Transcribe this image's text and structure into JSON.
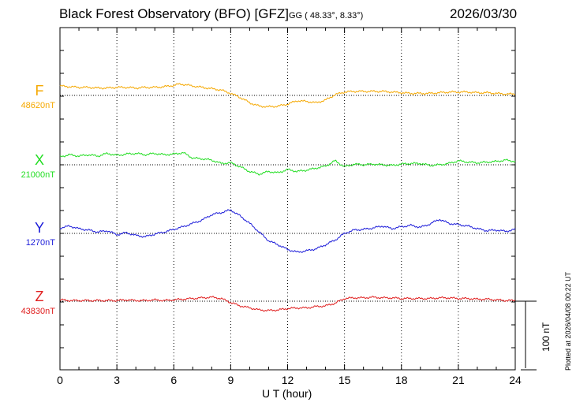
{
  "header": {
    "title": "Black Forest Observatory (BFO)  [GFZ]",
    "coords": "GG ( 48.33°,   8.33°)",
    "date": "2026/03/30"
  },
  "footer": {
    "plotted": "Plotted at 2026/04/08 00:22 UT"
  },
  "chart_data": {
    "type": "line",
    "title": "Black Forest Observatory (BFO)  [GFZ]",
    "xlabel": "U T (hour)",
    "ylabel": "",
    "xlim": [
      0,
      24
    ],
    "xticks": [
      "0",
      "3",
      "6",
      "9",
      "12",
      "15",
      "18",
      "21",
      "24"
    ],
    "grid": true,
    "scale_bar": {
      "label": "100 nT",
      "value_nT": 100
    },
    "series": [
      {
        "name": "F",
        "baseline_label": "48620nT",
        "color": "#f5a800",
        "x": [
          0,
          0.5,
          1,
          1.5,
          2,
          2.5,
          3,
          3.5,
          4,
          4.5,
          5,
          5.5,
          6,
          6.3,
          6.6,
          7,
          7.5,
          8,
          8.5,
          9,
          9.5,
          10,
          10.5,
          11,
          11.5,
          12,
          12.5,
          13,
          13.5,
          14,
          14.5,
          15,
          15.5,
          16,
          16.5,
          17,
          17.5,
          18,
          18.5,
          19,
          19.5,
          20,
          20.5,
          21,
          21.5,
          22,
          22.5,
          23,
          23.5,
          24
        ],
        "values": [
          14,
          13,
          12,
          12,
          11,
          11,
          12,
          12,
          11,
          12,
          12,
          13,
          15,
          17,
          16,
          14,
          12,
          10,
          8,
          3,
          -3,
          -11,
          -16,
          -17,
          -16,
          -13,
          -8,
          -9,
          -11,
          -7,
          1,
          5,
          6,
          6,
          6,
          6,
          5,
          4,
          3,
          3,
          3,
          4,
          5,
          5,
          5,
          4,
          4,
          3,
          2,
          2
        ]
      },
      {
        "name": "X",
        "baseline_label": "21000nT",
        "color": "#22dd22",
        "x": [
          0,
          0.5,
          1,
          1.5,
          2,
          2.5,
          3,
          3.5,
          4,
          4.5,
          5,
          5.5,
          6,
          6.5,
          7,
          7.5,
          8,
          8.5,
          9,
          9.5,
          10,
          10.5,
          11,
          11.5,
          12,
          12.5,
          13,
          13.5,
          14,
          14.5,
          15,
          15.5,
          16,
          16.5,
          17,
          17.5,
          18,
          18.5,
          19,
          19.5,
          20,
          20.5,
          21,
          21.5,
          22,
          22.5,
          23,
          23.5,
          24
        ],
        "values": [
          12,
          15,
          13,
          15,
          13,
          17,
          14,
          16,
          17,
          15,
          17,
          15,
          16,
          18,
          10,
          9,
          7,
          2,
          3,
          -3,
          -10,
          -14,
          -10,
          -12,
          -7,
          -10,
          -8,
          -5,
          -2,
          6,
          -3,
          1,
          0,
          1,
          0,
          -1,
          1,
          2,
          2,
          -1,
          0,
          2,
          6,
          4,
          3,
          4,
          5,
          7,
          5
        ]
      },
      {
        "name": "Y",
        "baseline_label": "1270nT",
        "color": "#1c1cd9",
        "x": [
          0,
          0.5,
          1,
          1.5,
          2,
          2.5,
          3,
          3.5,
          4,
          4.5,
          5,
          5.5,
          6,
          6.5,
          7,
          7.5,
          8,
          8.5,
          9,
          9.5,
          10,
          10.5,
          11,
          11.5,
          12,
          12.5,
          13,
          13.5,
          14,
          14.5,
          15,
          15.5,
          16,
          16.5,
          17,
          17.5,
          18,
          18.5,
          19,
          19.5,
          20,
          20.5,
          21,
          21.5,
          22,
          22.5,
          23,
          23.5,
          24
        ],
        "values": [
          8,
          11,
          7,
          5,
          2,
          4,
          -2,
          1,
          -3,
          -5,
          -1,
          2,
          6,
          10,
          15,
          20,
          28,
          31,
          35,
          26,
          15,
          2,
          -11,
          -17,
          -24,
          -28,
          -26,
          -23,
          -17,
          -10,
          0,
          5,
          6,
          8,
          11,
          7,
          10,
          12,
          9,
          14,
          21,
          15,
          13,
          11,
          7,
          4,
          5,
          3,
          6
        ]
      },
      {
        "name": "Z",
        "baseline_label": "43830nT",
        "color": "#e02020",
        "x": [
          0,
          0.5,
          1,
          1.5,
          2,
          2.5,
          3,
          3.5,
          4,
          4.5,
          5,
          5.5,
          6,
          6.5,
          7,
          7.5,
          8,
          8.5,
          9,
          9.5,
          10,
          10.5,
          11,
          11.5,
          12,
          12.5,
          13,
          13.5,
          14,
          14.5,
          15,
          15.5,
          16,
          16.5,
          17,
          17.5,
          18,
          18.5,
          19,
          19.5,
          20,
          20.5,
          21,
          21.5,
          22,
          22.5,
          23,
          23.5,
          24
        ],
        "values": [
          2,
          1,
          1,
          1,
          1,
          1,
          1,
          2,
          1,
          1,
          2,
          1,
          2,
          3,
          4,
          5,
          6,
          4,
          -2,
          -7,
          -10,
          -13,
          -14,
          -13,
          -11,
          -10,
          -10,
          -8,
          -7,
          -3,
          4,
          5,
          5,
          6,
          5,
          5,
          4,
          4,
          4,
          4,
          5,
          5,
          4,
          4,
          3,
          3,
          2,
          1,
          1
        ]
      }
    ]
  }
}
